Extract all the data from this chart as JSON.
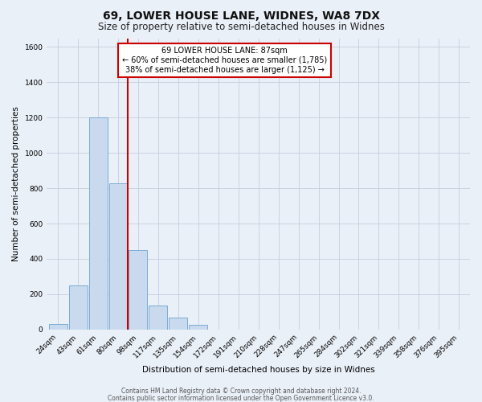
{
  "title": "69, LOWER HOUSE LANE, WIDNES, WA8 7DX",
  "subtitle": "Size of property relative to semi-detached houses in Widnes",
  "xlabel": "Distribution of semi-detached houses by size in Widnes",
  "ylabel": "Number of semi-detached properties",
  "bar_labels": [
    "24sqm",
    "43sqm",
    "61sqm",
    "80sqm",
    "98sqm",
    "117sqm",
    "135sqm",
    "154sqm",
    "172sqm",
    "191sqm",
    "210sqm",
    "228sqm",
    "247sqm",
    "265sqm",
    "284sqm",
    "302sqm",
    "321sqm",
    "339sqm",
    "358sqm",
    "376sqm",
    "395sqm"
  ],
  "bar_values": [
    30,
    250,
    1200,
    830,
    450,
    135,
    65,
    25,
    0,
    0,
    0,
    0,
    0,
    0,
    0,
    0,
    0,
    0,
    0,
    0,
    0
  ],
  "bar_color": "#c9daee",
  "bar_edgecolor": "#7bacd6",
  "vline_x_index": 4,
  "vline_color": "#cc0000",
  "annotation_title": "69 LOWER HOUSE LANE: 87sqm",
  "annotation_line1": "← 60% of semi-detached houses are smaller (1,785)",
  "annotation_line2": "38% of semi-detached houses are larger (1,125) →",
  "annotation_box_facecolor": "#ffffff",
  "annotation_box_edgecolor": "#cc0000",
  "ylim": [
    0,
    1650
  ],
  "xlim_left": 0,
  "xlim_right": 21,
  "yticks": [
    0,
    200,
    400,
    600,
    800,
    1000,
    1200,
    1400,
    1600
  ],
  "background_color": "#eaf0f8",
  "grid_color": "#c5cedd",
  "title_fontsize": 10,
  "subtitle_fontsize": 8.5,
  "axis_label_fontsize": 7.5,
  "tick_fontsize": 6.5,
  "footer1": "Contains HM Land Registry data © Crown copyright and database right 2024.",
  "footer2": "Contains public sector information licensed under the Open Government Licence v3.0.",
  "footer_fontsize": 5.5
}
